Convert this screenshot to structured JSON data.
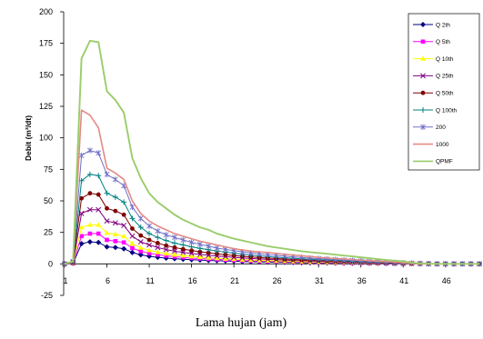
{
  "chart_data": {
    "type": "line",
    "xlabel": "Lama hujan (jam)",
    "ylabel": "Debit (m³/dt)",
    "xlim": [
      1,
      50
    ],
    "ylim": [
      -25,
      200
    ],
    "x_ticks": [
      1,
      6,
      11,
      16,
      21,
      26,
      31,
      36,
      41,
      46
    ],
    "y_ticks": [
      -25,
      0,
      25,
      50,
      75,
      100,
      125,
      150,
      175,
      200
    ],
    "grid": false,
    "legend": "top-right",
    "x": [
      1,
      2,
      3,
      4,
      5,
      6,
      7,
      8,
      9,
      10,
      11,
      12,
      13,
      14,
      15,
      16,
      17,
      18,
      19,
      20,
      21,
      22,
      23,
      24,
      25,
      26,
      27,
      28,
      29,
      30,
      31,
      32,
      33,
      34,
      35,
      36,
      37,
      38,
      39,
      40,
      41,
      42,
      43,
      44,
      45,
      46,
      47,
      48,
      49,
      50
    ],
    "series": [
      {
        "name": "Q 2th",
        "color": "#000080",
        "marker": "diamond",
        "values": [
          0,
          0.4,
          16,
          17.5,
          17,
          13.5,
          13,
          12,
          9,
          7.2,
          6,
          5.2,
          4.6,
          4.1,
          3.7,
          3.3,
          3,
          2.7,
          2.5,
          2.3,
          2.1,
          1.9,
          1.7,
          1.6,
          1.45,
          1.3,
          1.2,
          1.1,
          1,
          0.9,
          0.8,
          0.75,
          0.7,
          0.6,
          0.55,
          0.5,
          0.45,
          0.4,
          0.35,
          0.3,
          0.2,
          0.15,
          0.1,
          0.05,
          0,
          0,
          0,
          0,
          0,
          0
        ]
      },
      {
        "name": "Q 5th",
        "color": "#FF00FF",
        "marker": "square",
        "values": [
          0,
          0.6,
          22,
          24,
          24,
          19,
          18,
          17,
          12.5,
          10,
          8.4,
          7.3,
          6.4,
          5.7,
          5.1,
          4.6,
          4.2,
          3.8,
          3.5,
          3.2,
          2.9,
          2.6,
          2.4,
          2.2,
          2,
          1.85,
          1.7,
          1.55,
          1.4,
          1.25,
          1.15,
          1.05,
          0.95,
          0.85,
          0.75,
          0.7,
          0.6,
          0.55,
          0.45,
          0.4,
          0.3,
          0.2,
          0.15,
          0.1,
          0,
          0,
          0,
          0,
          0,
          0
        ]
      },
      {
        "name": "Q 10th",
        "color": "#FFFF00",
        "marker": "triangle",
        "values": [
          0,
          0.8,
          29,
          31,
          31,
          24.5,
          23.5,
          22,
          16,
          12.8,
          10.8,
          9.4,
          8.2,
          7.3,
          6.6,
          6,
          5.4,
          4.9,
          4.5,
          4.1,
          3.8,
          3.4,
          3.1,
          2.8,
          2.6,
          2.4,
          2.2,
          2,
          1.8,
          1.6,
          1.5,
          1.3,
          1.2,
          1.1,
          1,
          0.9,
          0.8,
          0.7,
          0.6,
          0.5,
          0.4,
          0.3,
          0.2,
          0.1,
          0,
          0,
          0,
          0,
          0,
          0
        ]
      },
      {
        "name": "Q 25th",
        "color": "#800080",
        "marker": "x",
        "values": [
          0,
          1,
          40,
          43,
          43,
          34,
          32.5,
          30.5,
          22,
          17.5,
          15,
          13,
          11.3,
          10.1,
          9.1,
          8.3,
          7.5,
          6.8,
          6.2,
          5.7,
          5.2,
          4.7,
          4.3,
          3.9,
          3.6,
          3.3,
          3,
          2.7,
          2.5,
          2.2,
          2,
          1.8,
          1.6,
          1.5,
          1.3,
          1.2,
          1,
          0.9,
          0.7,
          0.5,
          0.4,
          0.3,
          0.2,
          0.1,
          0,
          0,
          0,
          0,
          0,
          0
        ]
      },
      {
        "name": "Q 50th",
        "color": "#800000",
        "marker": "circle",
        "values": [
          0,
          1.2,
          52,
          56,
          55,
          44,
          42,
          39,
          28,
          22.5,
          19,
          16.5,
          14.5,
          13,
          11.7,
          10.6,
          9.6,
          8.8,
          8,
          7.3,
          6.6,
          6,
          5.5,
          5,
          4.6,
          4.2,
          3.8,
          3.5,
          3.2,
          2.9,
          2.6,
          2.3,
          2.1,
          1.9,
          1.7,
          1.5,
          1.3,
          1.1,
          0.9,
          0.7,
          0.5,
          0.3,
          0.2,
          0.1,
          0,
          0,
          0,
          0,
          0,
          0
        ]
      },
      {
        "name": "Q 100th",
        "color": "#008080",
        "marker": "plus",
        "values": [
          0,
          1.5,
          66,
          71,
          70,
          56,
          53,
          49,
          36,
          29,
          24,
          21,
          18.5,
          16.5,
          15,
          13.5,
          12.3,
          11.2,
          10.2,
          9.3,
          8.5,
          7.7,
          7,
          6.4,
          5.8,
          5.3,
          4.8,
          4.4,
          4,
          3.6,
          3.3,
          3,
          2.7,
          2.4,
          2.1,
          1.9,
          1.6,
          1.4,
          1.2,
          1,
          0.7,
          0.5,
          0.3,
          0.1,
          0,
          0,
          0,
          0,
          0,
          0
        ]
      },
      {
        "name": "200",
        "color": "#7070C8",
        "marker": "star",
        "values": [
          0,
          2,
          86,
          90,
          88,
          71,
          67,
          62,
          45,
          36,
          30,
          26,
          23,
          21,
          19,
          17,
          15.5,
          14,
          12.5,
          11.5,
          10.5,
          9.5,
          8.7,
          8,
          7.3,
          6.7,
          6.1,
          5.6,
          5.1,
          4.6,
          4.2,
          3.8,
          3.4,
          3,
          2.7,
          2.4,
          2,
          1.7,
          1.4,
          1.1,
          0.8,
          0.5,
          0.2,
          0,
          0,
          0,
          0,
          0,
          0,
          0
        ]
      },
      {
        "name": "1000",
        "color": "#E38A86",
        "marker": "none",
        "values": [
          0,
          2,
          122,
          118,
          108,
          76,
          72,
          67,
          50,
          40,
          34,
          30,
          27,
          24,
          22,
          20,
          18,
          16.5,
          15,
          13.5,
          12,
          11,
          10,
          9.5,
          9,
          8.3,
          7.6,
          7,
          6.4,
          5.8,
          5.2,
          4.7,
          4.2,
          3.8,
          3.4,
          3,
          2.6,
          2.2,
          1.8,
          1.4,
          1,
          0.5,
          0,
          0,
          0,
          0,
          0,
          0,
          0,
          0
        ]
      },
      {
        "name": "QPMF",
        "color": "#9ACD6A",
        "marker": "none",
        "values": [
          0,
          2,
          163,
          177,
          176,
          137,
          130,
          120,
          84,
          68,
          56,
          49,
          44,
          39,
          35,
          32,
          29,
          27,
          24,
          22,
          20,
          18.5,
          17,
          15.5,
          14,
          13,
          12,
          11,
          10,
          9.3,
          8.7,
          8,
          7.3,
          6.6,
          6,
          5.2,
          4.5,
          3.8,
          3.1,
          2.5,
          2,
          1,
          0.5,
          0.2,
          0,
          0,
          0,
          0,
          0,
          0
        ]
      }
    ]
  }
}
